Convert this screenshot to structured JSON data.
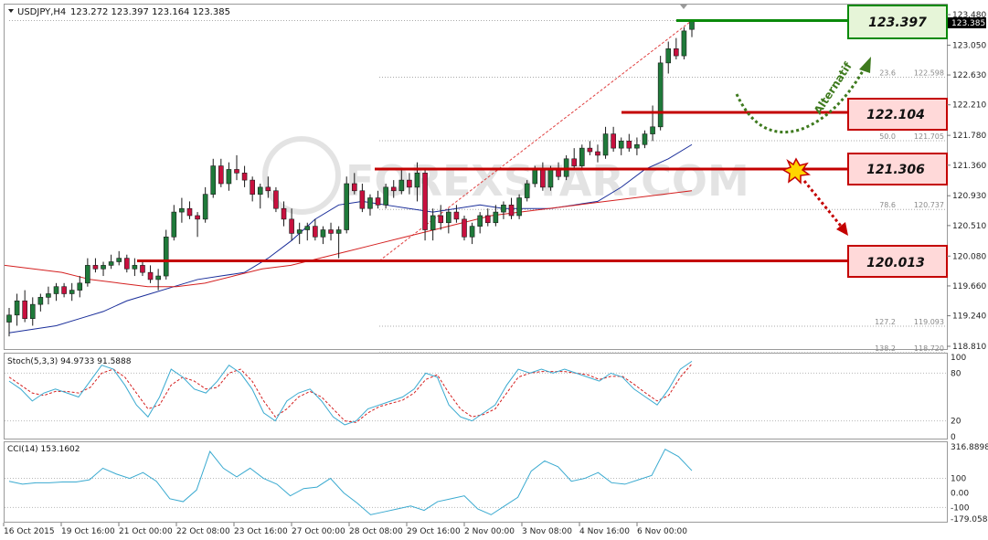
{
  "header": {
    "symbol": "USDJPY,H4",
    "ohlc": "123.272 123.397 123.164 123.385"
  },
  "price_axis": {
    "ticks": [
      "123.480",
      "123.050",
      "122.630",
      "122.210",
      "121.780",
      "121.360",
      "120.930",
      "120.510",
      "120.080",
      "119.660",
      "119.240",
      "118.810"
    ],
    "current_price": "123.385"
  },
  "fib_levels": [
    {
      "pct": "23.6",
      "price": "122.598"
    },
    {
      "pct": "50.0",
      "price": "121.705"
    },
    {
      "pct": "78.6",
      "price": "120.737"
    },
    {
      "pct": "127.2",
      "price": "119.093"
    },
    {
      "pct": "138.2",
      "price": "118.720"
    }
  ],
  "levels": {
    "resistance_label": "123.397",
    "level1_label": "122.104",
    "level2_label": "121.306",
    "support_label": "120.013"
  },
  "annotations": {
    "alternatif": "Alternatif",
    "watermark": "FOREXSTAR.COM"
  },
  "colors": {
    "green_line": "#0a8a0a",
    "red_line": "#c40000",
    "box_green_bg": "#e6f5d8",
    "box_red_bg": "#ffd9d9",
    "bull_candle": "#1f7a3a",
    "bear_candle": "#c8103e",
    "ma_fast": "#1a2e9a",
    "ma_slow": "#d42020",
    "indicator_line": "#3aaad0"
  },
  "stoch": {
    "label": "Stoch(5,3,3) 94.9733 91.5888",
    "ticks": [
      "100",
      "80",
      "20",
      "0"
    ]
  },
  "cci": {
    "label": "CCI(14) 153.1602",
    "ticks": [
      "316.8898",
      "100",
      "0.00",
      "-100",
      "-179.0584"
    ]
  },
  "time_axis": {
    "labels": [
      "16 Oct 2015",
      "19 Oct 16:00",
      "21 Oct 00:00",
      "22 Oct 08:00",
      "23 Oct 16:00",
      "27 Oct 00:00",
      "28 Oct 08:00",
      "29 Oct 16:00",
      "2 Nov 00:00",
      "3 Nov 08:00",
      "4 Nov 16:00",
      "6 Nov 00:00"
    ]
  },
  "chart_data": {
    "type": "candlestick",
    "title": "USDJPY,H4",
    "y_range": [
      118.7,
      123.55
    ],
    "time_labels": [
      "16 Oct 2015",
      "19 Oct 16:00",
      "21 Oct 00:00",
      "22 Oct 08:00",
      "23 Oct 16:00",
      "27 Oct 00:00",
      "28 Oct 08:00",
      "29 Oct 16:00",
      "2 Nov 00:00",
      "3 Nov 08:00",
      "4 Nov 16:00",
      "6 Nov 00:00"
    ],
    "ohlc": [
      [
        119.15,
        119.35,
        118.95,
        119.25
      ],
      [
        119.25,
        119.55,
        119.1,
        119.45
      ],
      [
        119.45,
        119.6,
        119.15,
        119.2
      ],
      [
        119.2,
        119.5,
        119.1,
        119.4
      ],
      [
        119.4,
        119.55,
        119.3,
        119.5
      ],
      [
        119.5,
        119.65,
        119.4,
        119.55
      ],
      [
        119.55,
        119.7,
        119.45,
        119.65
      ],
      [
        119.65,
        119.7,
        119.5,
        119.55
      ],
      [
        119.55,
        119.7,
        119.45,
        119.6
      ],
      [
        119.6,
        119.8,
        119.5,
        119.7
      ],
      [
        119.7,
        120.05,
        119.65,
        119.95
      ],
      [
        119.95,
        120.05,
        119.85,
        119.9
      ],
      [
        119.9,
        120.0,
        119.8,
        119.95
      ],
      [
        119.95,
        120.1,
        119.9,
        120.0
      ],
      [
        120.0,
        120.15,
        119.95,
        120.05
      ],
      [
        120.05,
        120.1,
        119.85,
        119.9
      ],
      [
        119.9,
        120.05,
        119.8,
        119.95
      ],
      [
        119.95,
        120.0,
        119.8,
        119.85
      ],
      [
        119.85,
        119.95,
        119.7,
        119.75
      ],
      [
        119.75,
        119.9,
        119.6,
        119.8
      ],
      [
        119.8,
        120.45,
        119.75,
        120.35
      ],
      [
        120.35,
        120.8,
        120.3,
        120.7
      ],
      [
        120.7,
        120.9,
        120.55,
        120.75
      ],
      [
        120.75,
        120.85,
        120.6,
        120.65
      ],
      [
        120.65,
        120.7,
        120.35,
        120.6
      ],
      [
        120.6,
        121.05,
        120.55,
        120.95
      ],
      [
        120.95,
        121.45,
        120.9,
        121.35
      ],
      [
        121.35,
        121.45,
        121.05,
        121.1
      ],
      [
        121.1,
        121.4,
        121.0,
        121.3
      ],
      [
        121.3,
        121.5,
        121.15,
        121.25
      ],
      [
        121.25,
        121.35,
        121.05,
        121.15
      ],
      [
        121.15,
        121.2,
        120.85,
        120.95
      ],
      [
        120.95,
        121.1,
        120.75,
        121.05
      ],
      [
        121.05,
        121.2,
        120.9,
        121.0
      ],
      [
        121.0,
        121.05,
        120.7,
        120.75
      ],
      [
        120.75,
        120.85,
        120.5,
        120.6
      ],
      [
        120.6,
        120.75,
        120.3,
        120.4
      ],
      [
        120.4,
        120.55,
        120.25,
        120.45
      ],
      [
        120.45,
        120.55,
        120.3,
        120.5
      ],
      [
        120.5,
        120.6,
        120.3,
        120.35
      ],
      [
        120.35,
        120.5,
        120.25,
        120.45
      ],
      [
        120.45,
        120.55,
        120.3,
        120.4
      ],
      [
        120.4,
        120.5,
        120.05,
        120.45
      ],
      [
        120.45,
        121.2,
        120.4,
        121.1
      ],
      [
        121.1,
        121.25,
        120.95,
        121.0
      ],
      [
        121.0,
        121.1,
        120.7,
        120.75
      ],
      [
        120.75,
        120.95,
        120.65,
        120.9
      ],
      [
        120.9,
        121.0,
        120.75,
        120.8
      ],
      [
        120.8,
        121.1,
        120.75,
        121.05
      ],
      [
        121.05,
        121.15,
        120.9,
        121.0
      ],
      [
        121.0,
        121.3,
        120.95,
        121.15
      ],
      [
        121.15,
        121.25,
        120.95,
        121.05
      ],
      [
        121.05,
        121.4,
        120.85,
        121.25
      ],
      [
        121.25,
        121.3,
        120.3,
        120.45
      ],
      [
        120.45,
        120.75,
        120.3,
        120.65
      ],
      [
        120.65,
        120.8,
        120.45,
        120.55
      ],
      [
        120.55,
        120.75,
        120.4,
        120.7
      ],
      [
        120.7,
        120.8,
        120.55,
        120.6
      ],
      [
        120.6,
        120.65,
        120.3,
        120.35
      ],
      [
        120.35,
        120.55,
        120.25,
        120.5
      ],
      [
        120.5,
        120.7,
        120.4,
        120.65
      ],
      [
        120.65,
        120.75,
        120.5,
        120.55
      ],
      [
        120.55,
        120.8,
        120.5,
        120.7
      ],
      [
        120.7,
        120.85,
        120.6,
        120.8
      ],
      [
        120.8,
        120.9,
        120.6,
        120.65
      ],
      [
        120.65,
        120.95,
        120.6,
        120.9
      ],
      [
        120.9,
        121.15,
        120.85,
        121.1
      ],
      [
        121.1,
        121.35,
        121.05,
        121.3
      ],
      [
        121.3,
        121.4,
        121.0,
        121.05
      ],
      [
        121.05,
        121.35,
        121.0,
        121.3
      ],
      [
        121.3,
        121.4,
        121.15,
        121.2
      ],
      [
        121.2,
        121.5,
        121.15,
        121.45
      ],
      [
        121.45,
        121.6,
        121.3,
        121.35
      ],
      [
        121.35,
        121.65,
        121.3,
        121.6
      ],
      [
        121.6,
        121.7,
        121.5,
        121.55
      ],
      [
        121.55,
        121.65,
        121.4,
        121.5
      ],
      [
        121.5,
        121.9,
        121.45,
        121.8
      ],
      [
        121.8,
        121.9,
        121.55,
        121.6
      ],
      [
        121.6,
        121.75,
        121.5,
        121.7
      ],
      [
        121.7,
        121.8,
        121.55,
        121.6
      ],
      [
        121.6,
        121.75,
        121.5,
        121.65
      ],
      [
        121.65,
        121.85,
        121.6,
        121.8
      ],
      [
        121.8,
        122.2,
        121.7,
        121.9
      ],
      [
        121.9,
        122.9,
        121.85,
        122.8
      ],
      [
        122.8,
        123.1,
        122.65,
        123.0
      ],
      [
        123.0,
        123.15,
        122.85,
        122.9
      ],
      [
        122.9,
        123.3,
        122.85,
        123.25
      ],
      [
        123.272,
        123.397,
        123.164,
        123.385
      ]
    ],
    "ma_fast": [
      119.0,
      119.05,
      119.1,
      119.2,
      119.3,
      119.45,
      119.55,
      119.65,
      119.75,
      119.8,
      119.85,
      120.05,
      120.3,
      120.6,
      120.8,
      120.85,
      120.8,
      120.75,
      120.7,
      120.75,
      120.8,
      120.75,
      120.75,
      120.75,
      120.8,
      120.85,
      121.05,
      121.3,
      121.45,
      121.65
    ],
    "ma_slow": [
      119.95,
      119.9,
      119.85,
      119.75,
      119.7,
      119.65,
      119.65,
      119.7,
      119.8,
      119.9,
      119.95,
      120.05,
      120.15,
      120.25,
      120.35,
      120.45,
      120.55,
      120.65,
      120.7,
      120.75,
      120.8,
      120.85,
      120.9,
      120.95,
      121.0
    ],
    "stochastic": {
      "k": [
        70,
        60,
        45,
        55,
        60,
        55,
        50,
        70,
        90,
        85,
        65,
        40,
        25,
        50,
        85,
        75,
        60,
        55,
        70,
        90,
        80,
        60,
        30,
        20,
        45,
        55,
        60,
        45,
        25,
        15,
        20,
        35,
        40,
        45,
        50,
        60,
        80,
        75,
        40,
        25,
        20,
        30,
        40,
        65,
        85,
        80,
        85,
        80,
        85,
        80,
        75,
        70,
        80,
        75,
        60,
        50,
        40,
        60,
        85,
        94.97
      ],
      "d": [
        75,
        65,
        55,
        52,
        57,
        57,
        55,
        62,
        80,
        85,
        75,
        55,
        35,
        40,
        65,
        75,
        70,
        60,
        62,
        80,
        85,
        70,
        45,
        25,
        35,
        50,
        57,
        50,
        35,
        20,
        18,
        30,
        38,
        42,
        46,
        55,
        72,
        78,
        55,
        35,
        25,
        28,
        35,
        55,
        75,
        80,
        82,
        82,
        82,
        80,
        78,
        72,
        76,
        76,
        66,
        55,
        45,
        52,
        75,
        91.59
      ]
    },
    "cci": [
      80,
      60,
      70,
      70,
      75,
      75,
      90,
      170,
      130,
      100,
      140,
      80,
      -40,
      -60,
      20,
      285,
      170,
      110,
      170,
      100,
      60,
      -20,
      30,
      40,
      100,
      0,
      -70,
      -150,
      -130,
      -110,
      -90,
      -120,
      -60,
      -40,
      -20,
      -110,
      -150,
      -90,
      -30,
      150,
      220,
      180,
      80,
      100,
      140,
      70,
      60,
      90,
      120,
      300,
      250,
      153.16
    ]
  }
}
